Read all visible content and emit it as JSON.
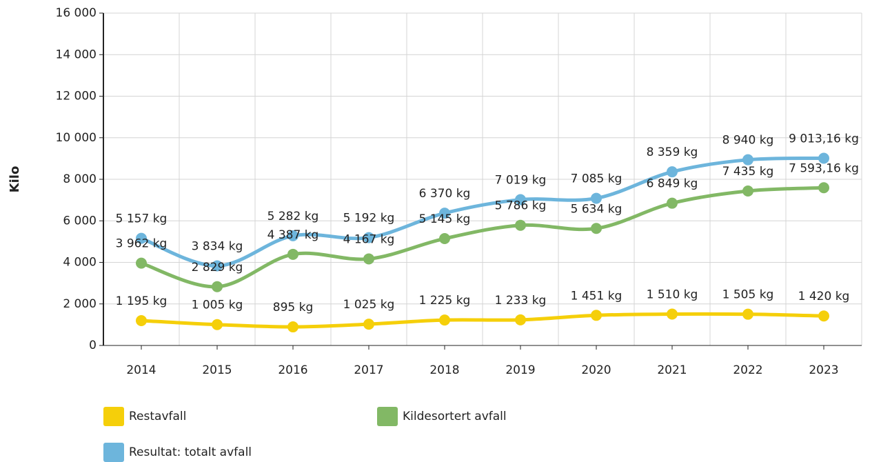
{
  "chart_data": {
    "type": "line",
    "y_label": "Kilo",
    "categories": [
      "2014",
      "2015",
      "2016",
      "2017",
      "2018",
      "2019",
      "2020",
      "2021",
      "2022",
      "2023"
    ],
    "series": [
      {
        "name": "Restavfall",
        "color": "#f5cf0a",
        "values": [
          1195,
          1005,
          895,
          1025,
          1225,
          1233,
          1451,
          1510,
          1505,
          1420
        ],
        "value_labels": [
          "1 195 kg",
          "1 005 kg",
          "895 kg",
          "1 025 kg",
          "1 225 kg",
          "1 233 kg",
          "1 451 kg",
          "1 510 kg",
          "1 505 kg",
          "1 420 kg"
        ]
      },
      {
        "name": "Kildesortert avfall",
        "color": "#82b865",
        "values": [
          3962,
          2829,
          4387,
          4167,
          5145,
          5786,
          5634,
          6849,
          7435,
          7593.16
        ],
        "value_labels": [
          "3 962 kg",
          "2 829 kg",
          "4 387 kg",
          "4 167 kg",
          "5 145 kg",
          "5 786 kg",
          "5 634 kg",
          "6 849 kg",
          "7 435 kg",
          "7 593,16 kg"
        ]
      },
      {
        "name": "Resultat: totalt avfall",
        "color": "#6db5dc",
        "values": [
          5157,
          3834,
          5282,
          5192,
          6370,
          7019,
          7085,
          8359,
          8940,
          9013.16
        ],
        "value_labels": [
          "5 157 kg",
          "3 834 kg",
          "5 282 kg",
          "5 192 kg",
          "6 370 kg",
          "7 019 kg",
          "7 085 kg",
          "8 359 kg",
          "8 940 kg",
          "9 013,16 kg"
        ]
      }
    ],
    "ylim": [
      0,
      16000
    ],
    "yticks": [
      0,
      {
        "value": 2000,
        "label": "2 000"
      },
      {
        "value": 4000,
        "label": "4 000"
      },
      {
        "value": 6000,
        "label": "6 000"
      },
      {
        "value": 8000,
        "label": "8 000"
      },
      {
        "value": 10000,
        "label": "10 000"
      },
      {
        "value": 12000,
        "label": "12 000"
      },
      {
        "value": 14000,
        "label": "14 000"
      },
      {
        "value": 16000,
        "label": "16 000"
      }
    ],
    "grid": true
  }
}
